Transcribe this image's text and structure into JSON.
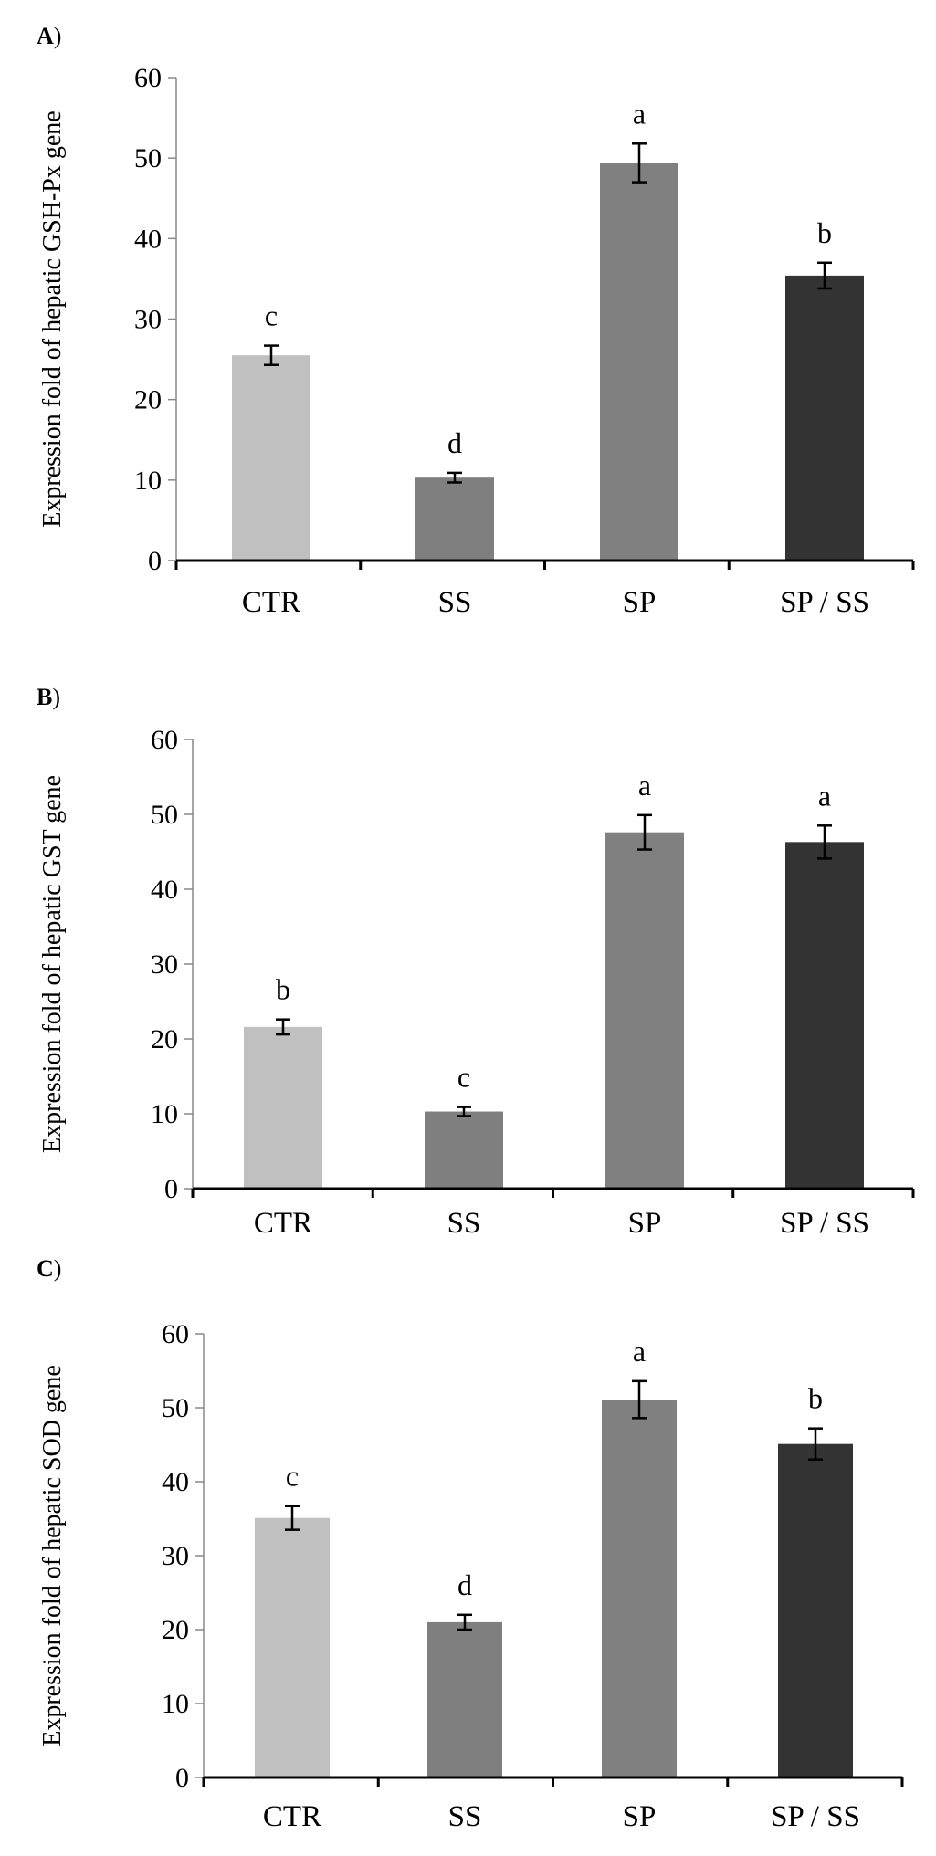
{
  "colors": {
    "CTR": "#c0c0c0",
    "SS": "#7f7f7f",
    "SP": "#808080",
    "SP / SS": "#333333",
    "axis": "#000000",
    "left_axis": "#888888"
  },
  "chart_data": [
    {
      "type": "bar",
      "panel_letter": "A",
      "panel_paren": ")",
      "ylabel": "Expression fold of hepatic GSH-Px gene",
      "xlabel": "",
      "categories": [
        "CTR",
        "SS",
        "SP",
        "SP / SS"
      ],
      "values": [
        25.5,
        10.3,
        49.4,
        35.4
      ],
      "errors": [
        1.2,
        0.6,
        2.4,
        1.6
      ],
      "significance": [
        "c",
        "d",
        "a",
        "b"
      ],
      "ylim": [
        0,
        60
      ],
      "yticks": [
        0,
        10,
        20,
        30,
        40,
        50,
        60
      ],
      "grid": false
    },
    {
      "type": "bar",
      "panel_letter": "B",
      "panel_paren": ")",
      "ylabel": "Expression fold of hepatic GST gene",
      "xlabel": "",
      "categories": [
        "CTR",
        "SS",
        "SP",
        "SP / SS"
      ],
      "values": [
        21.6,
        10.3,
        47.6,
        46.3
      ],
      "errors": [
        1.0,
        0.6,
        2.3,
        2.2
      ],
      "significance": [
        "b",
        "c",
        "a",
        "a"
      ],
      "ylim": [
        0,
        60
      ],
      "yticks": [
        0,
        10,
        20,
        30,
        40,
        50,
        60
      ],
      "grid": false
    },
    {
      "type": "bar",
      "panel_letter": "C",
      "panel_paren": ")",
      "ylabel": "Expression fold of hepatic SOD gene",
      "xlabel": "",
      "categories": [
        "CTR",
        "SS",
        "SP",
        "SP / SS"
      ],
      "values": [
        35.1,
        21.0,
        51.1,
        45.1
      ],
      "errors": [
        1.6,
        1.0,
        2.5,
        2.1
      ],
      "significance": [
        "c",
        "d",
        "a",
        "b"
      ],
      "ylim": [
        0,
        60
      ],
      "yticks": [
        0,
        10,
        20,
        30,
        40,
        50,
        60
      ],
      "grid": false
    }
  ]
}
